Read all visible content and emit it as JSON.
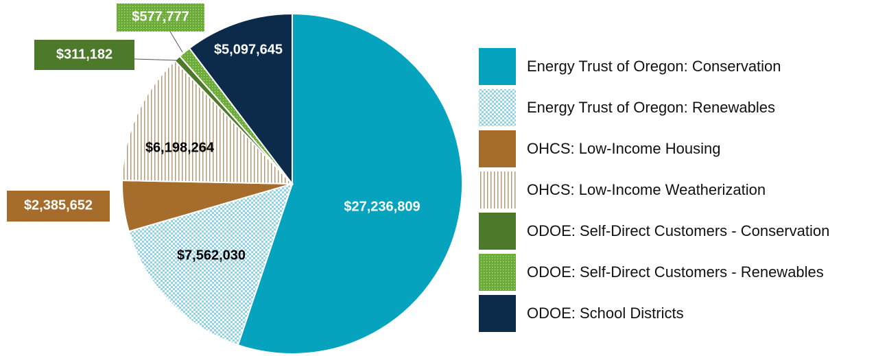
{
  "chart_data": {
    "type": "pie",
    "categories": [
      "Energy Trust of Oregon: Conservation",
      "Energy Trust of Oregon: Renewables",
      "OHCS: Low-Income Housing",
      "OHCS: Low-Income Weatherization",
      "ODOE: Self-Direct Customers - Conservation",
      "ODOE: Self-Direct Customers - Renewables",
      "ODOE: School Districts"
    ],
    "values": [
      27236809,
      7562030,
      2385652,
      6198264,
      311182,
      577777,
      5097645
    ],
    "value_labels": [
      "$27,236,809",
      "$7,562,030",
      "$2,385,652",
      "$6,198,264",
      "$311,182",
      "$577,777",
      "$5,097,645"
    ],
    "colors": [
      "#06a3bf",
      "#8fd3e6",
      "#a66c2b",
      "#b59a74",
      "#4d7a2a",
      "#6fad3a",
      "#0c2a4a"
    ],
    "patterns": [
      "solid",
      "checker",
      "solid",
      "stripes",
      "solid",
      "dots",
      "solid"
    ]
  }
}
